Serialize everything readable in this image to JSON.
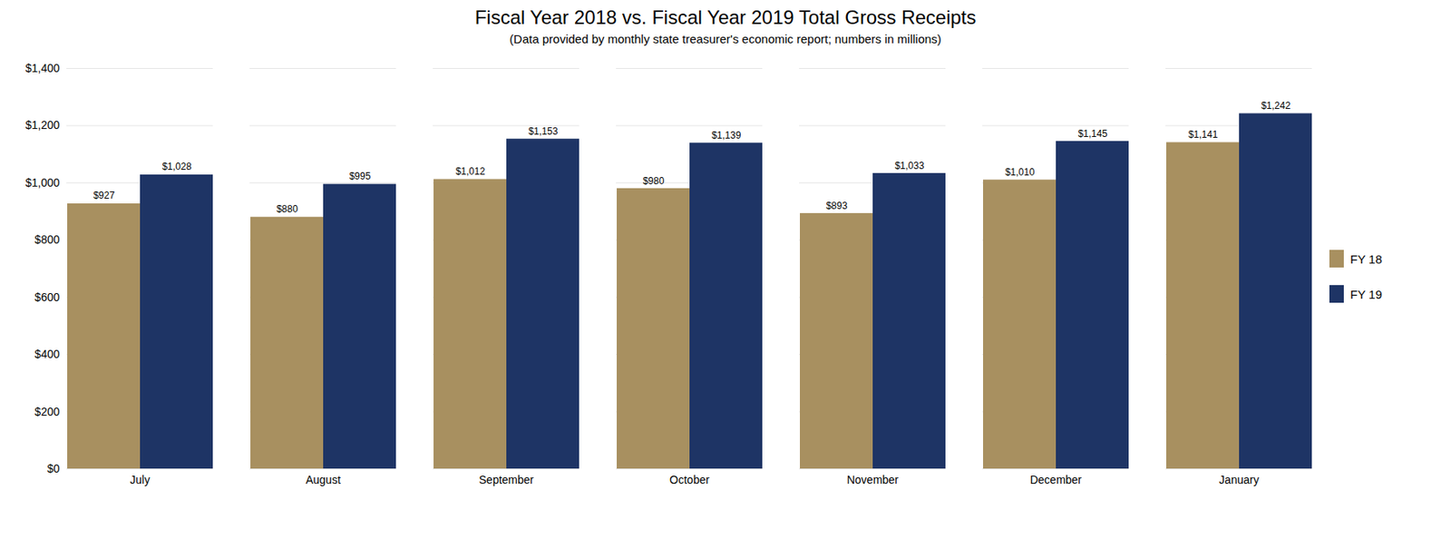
{
  "chart_data": {
    "type": "bar",
    "title": "Fiscal Year 2018 vs. Fiscal Year 2019 Total Gross Receipts",
    "subtitle": "(Data provided by monthly state treasurer's economic report; numbers in millions)",
    "categories": [
      "July",
      "August",
      "September",
      "October",
      "November",
      "December",
      "January"
    ],
    "series": [
      {
        "name": "FY 18",
        "color": "#a89060",
        "values": [
          927,
          880,
          1012,
          980,
          893,
          1010,
          1141
        ],
        "value_labels": [
          "$927",
          "$880",
          "$1,012",
          "$980",
          "$893",
          "$1,010",
          "$1,141"
        ]
      },
      {
        "name": "FY 19",
        "color": "#1e3465",
        "values": [
          1028,
          995,
          1153,
          1139,
          1033,
          1145,
          1242
        ],
        "value_labels": [
          "$1,028",
          "$995",
          "$1,153",
          "$1,139",
          "$1,033",
          "$1,145",
          "$1,242"
        ]
      }
    ],
    "ylim": [
      0,
      1400
    ],
    "yticks": [
      {
        "value": 0,
        "label": "$0"
      },
      {
        "value": 200,
        "label": "$200"
      },
      {
        "value": 400,
        "label": "$400"
      },
      {
        "value": 600,
        "label": "$600"
      },
      {
        "value": 800,
        "label": "$800"
      },
      {
        "value": 1000,
        "label": "$1,000"
      },
      {
        "value": 1200,
        "label": "$1,200"
      },
      {
        "value": 1400,
        "label": "$1,400"
      }
    ],
    "grid": true,
    "legend": "right",
    "data_labels": true
  }
}
